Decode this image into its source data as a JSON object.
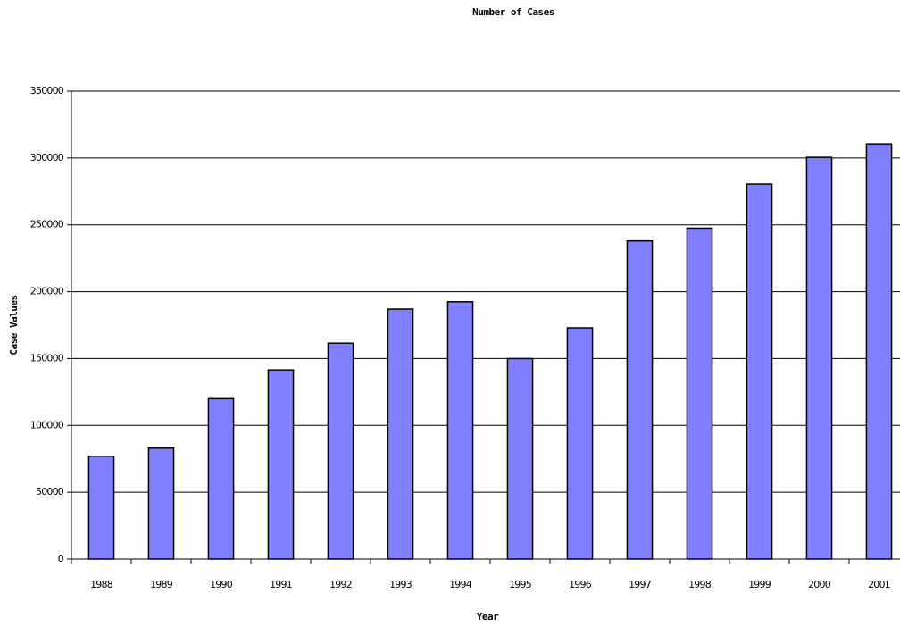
{
  "chart_data": {
    "type": "bar",
    "title": "Number of Cases",
    "x_label": "Year",
    "y_label": "Case Values",
    "categories": [
      "1988",
      "1989",
      "1990",
      "1991",
      "1992",
      "1993",
      "1994",
      "1995",
      "1996",
      "1997",
      "1998",
      "1999",
      "2000",
      "2001"
    ],
    "values": [
      77000,
      83000,
      120000,
      141500,
      161500,
      187000,
      192500,
      150000,
      173000,
      238000,
      247500,
      280500,
      300500,
      310500
    ],
    "color": "#8080ff",
    "ylim": [
      0,
      350000
    ],
    "yticks": [
      0,
      50000,
      100000,
      150000,
      200000,
      250000,
      300000,
      350000
    ],
    "grid": true
  }
}
